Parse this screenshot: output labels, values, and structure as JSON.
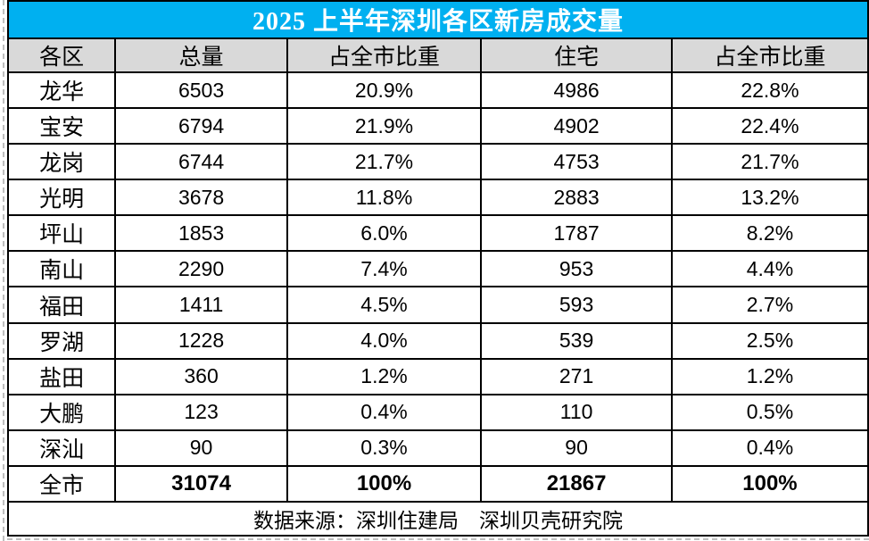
{
  "chart_data": {
    "type": "table",
    "title": "2025 上半年深圳各区新房成交量",
    "columns": [
      "各区",
      "总量",
      "占全市比重",
      "住宅",
      "占全市比重"
    ],
    "rows": [
      [
        "龙华",
        "6503",
        "20.9%",
        "4986",
        "22.8%"
      ],
      [
        "宝安",
        "6794",
        "21.9%",
        "4902",
        "22.4%"
      ],
      [
        "龙岗",
        "6744",
        "21.7%",
        "4753",
        "21.7%"
      ],
      [
        "光明",
        "3678",
        "11.8%",
        "2883",
        "13.2%"
      ],
      [
        "坪山",
        "1853",
        "6.0%",
        "1787",
        "8.2%"
      ],
      [
        "南山",
        "2290",
        "7.4%",
        "953",
        "4.4%"
      ],
      [
        "福田",
        "1411",
        "4.5%",
        "593",
        "2.7%"
      ],
      [
        "罗湖",
        "1228",
        "4.0%",
        "539",
        "2.5%"
      ],
      [
        "盐田",
        "360",
        "1.2%",
        "271",
        "1.2%"
      ],
      [
        "大鹏",
        "123",
        "0.4%",
        "110",
        "0.5%"
      ],
      [
        "深汕",
        "90",
        "0.3%",
        "90",
        "0.4%"
      ]
    ],
    "total_row": [
      "全市",
      "31074",
      "100%",
      "21867",
      "100%"
    ],
    "source": "数据来源：深圳住建局　深圳贝壳研究院"
  },
  "colors": {
    "page_bg": "#FFFFFF",
    "title_bg": "#00B0F0",
    "title_text": "#FFFFFF",
    "header_bg": "#D9D9D9",
    "border": "#000000"
  }
}
